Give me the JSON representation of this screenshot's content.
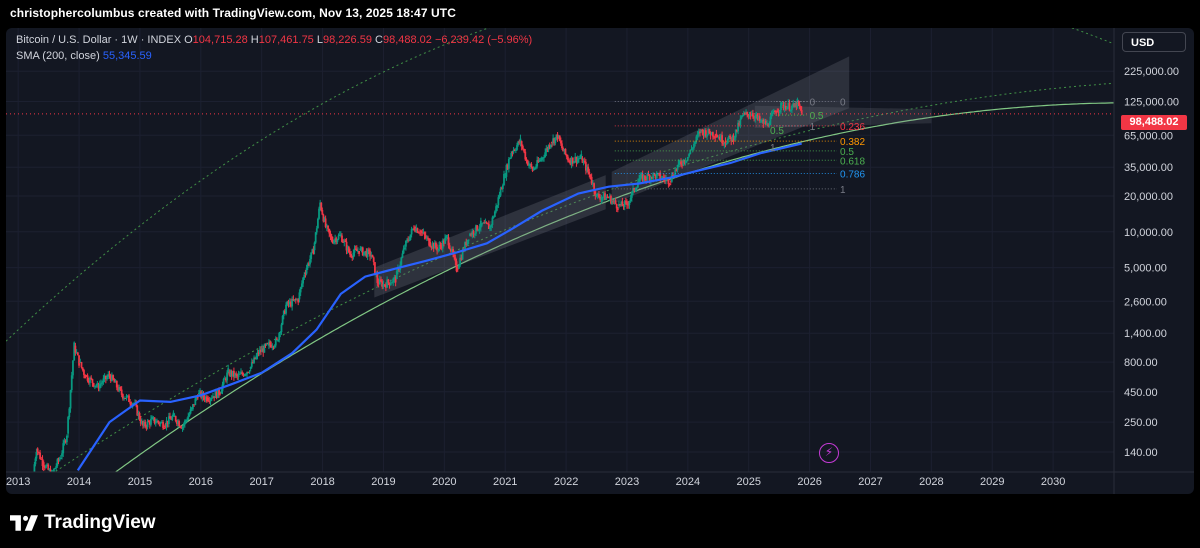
{
  "header": {
    "attribution": "christophercolumbus created with TradingView.com, Nov 13, 2025 18:47 UTC"
  },
  "legend": {
    "title": "Bitcoin / U.S. Dollar · 1W · INDEX",
    "open_label": "O",
    "open": "104,715.28",
    "high_label": "H",
    "high": "107,461.75",
    "low_label": "L",
    "low": "98,226.59",
    "close_label": "C",
    "close": "98,488.02",
    "change": "−6,239.42 (−5.96%)",
    "sma_label": "SMA (200, close)",
    "sma_value": "55,345.59"
  },
  "currency_button": "USD",
  "last_price_badge": "98,488.02",
  "brand": "TradingView",
  "colors": {
    "background": "#131722",
    "up": "#089981",
    "down": "#f23645",
    "sma": "#2962ff",
    "outer_curve": "#4caf50",
    "fib_channel": "#787b86",
    "accent_purple": "#c53ad6"
  },
  "chart_data": {
    "type": "candlestick",
    "y_scale": "log",
    "y_ticks": [
      "225,000.00",
      "125,000.00",
      "65,000.00",
      "35,000.00",
      "20,000.00",
      "10,000.00",
      "5,000.00",
      "2,600.00",
      "1,400.00",
      "800.00",
      "450.00",
      "250.00",
      "140.00"
    ],
    "y_tick_values": [
      225000,
      125000,
      65000,
      35000,
      20000,
      10000,
      5000,
      2600,
      1400,
      800,
      450,
      250,
      140
    ],
    "x_ticks": [
      "2013",
      "2014",
      "2015",
      "2016",
      "2017",
      "2018",
      "2019",
      "2020",
      "2021",
      "2022",
      "2023",
      "2024",
      "2025",
      "2026",
      "2027",
      "2028",
      "2029",
      "2030"
    ],
    "x_tick_values": [
      2013,
      2014,
      2015,
      2016,
      2017,
      2018,
      2019,
      2020,
      2021,
      2022,
      2023,
      2024,
      2025,
      2026,
      2027,
      2028,
      2029,
      2030
    ],
    "x_range": [
      2012.8,
      2031.0
    ],
    "y_range": [
      95,
      520000
    ],
    "price_series": [
      [
        2013.25,
        95
      ],
      [
        2013.3,
        150
      ],
      [
        2013.4,
        115
      ],
      [
        2013.55,
        90
      ],
      [
        2013.7,
        130
      ],
      [
        2013.8,
        200
      ],
      [
        2013.92,
        1100
      ],
      [
        2014.0,
        800
      ],
      [
        2014.1,
        620
      ],
      [
        2014.3,
        500
      ],
      [
        2014.5,
        620
      ],
      [
        2014.7,
        430
      ],
      [
        2014.9,
        360
      ],
      [
        2015.05,
        230
      ],
      [
        2015.2,
        260
      ],
      [
        2015.4,
        240
      ],
      [
        2015.55,
        280
      ],
      [
        2015.7,
        230
      ],
      [
        2015.85,
        320
      ],
      [
        2015.95,
        430
      ],
      [
        2016.1,
        400
      ],
      [
        2016.3,
        440
      ],
      [
        2016.45,
        660
      ],
      [
        2016.6,
        600
      ],
      [
        2016.8,
        700
      ],
      [
        2016.95,
        960
      ],
      [
        2017.1,
        1100
      ],
      [
        2017.25,
        1200
      ],
      [
        2017.4,
        2400
      ],
      [
        2017.6,
        2700
      ],
      [
        2017.7,
        4500
      ],
      [
        2017.85,
        7000
      ],
      [
        2017.96,
        17500
      ],
      [
        2018.05,
        11000
      ],
      [
        2018.15,
        8500
      ],
      [
        2018.3,
        9300
      ],
      [
        2018.45,
        6500
      ],
      [
        2018.6,
        7000
      ],
      [
        2018.8,
        6400
      ],
      [
        2018.9,
        3800
      ],
      [
        2019.0,
        3600
      ],
      [
        2019.2,
        4000
      ],
      [
        2019.35,
        7500
      ],
      [
        2019.5,
        11000
      ],
      [
        2019.6,
        10200
      ],
      [
        2019.75,
        8200
      ],
      [
        2019.9,
        7200
      ],
      [
        2020.05,
        9000
      ],
      [
        2020.2,
        4900
      ],
      [
        2020.4,
        9300
      ],
      [
        2020.6,
        11500
      ],
      [
        2020.75,
        11000
      ],
      [
        2020.85,
        16000
      ],
      [
        2020.98,
        29000
      ],
      [
        2021.1,
        47000
      ],
      [
        2021.25,
        58000
      ],
      [
        2021.35,
        40000
      ],
      [
        2021.45,
        33000
      ],
      [
        2021.6,
        42000
      ],
      [
        2021.75,
        57000
      ],
      [
        2021.86,
        64000
      ],
      [
        2021.95,
        48000
      ],
      [
        2022.05,
        40000
      ],
      [
        2022.25,
        42000
      ],
      [
        2022.4,
        29000
      ],
      [
        2022.5,
        20000
      ],
      [
        2022.7,
        19500
      ],
      [
        2022.85,
        16500
      ],
      [
        2023.0,
        17000
      ],
      [
        2023.2,
        28000
      ],
      [
        2023.45,
        30000
      ],
      [
        2023.7,
        27000
      ],
      [
        2023.85,
        37000
      ],
      [
        2024.0,
        43000
      ],
      [
        2024.2,
        70000
      ],
      [
        2024.45,
        67000
      ],
      [
        2024.6,
        58000
      ],
      [
        2024.75,
        62000
      ],
      [
        2024.9,
        95000
      ],
      [
        2025.05,
        100000
      ],
      [
        2025.2,
        84000
      ],
      [
        2025.3,
        80000
      ],
      [
        2025.45,
        105000
      ],
      [
        2025.55,
        117000
      ],
      [
        2025.75,
        112000
      ],
      [
        2025.8,
        122000
      ],
      [
        2025.87,
        98488
      ]
    ],
    "sma_200": [
      [
        2013.98,
        98
      ],
      [
        2014.5,
        250
      ],
      [
        2015.0,
        380
      ],
      [
        2015.5,
        370
      ],
      [
        2016.0,
        420
      ],
      [
        2016.5,
        520
      ],
      [
        2017.0,
        650
      ],
      [
        2017.5,
        950
      ],
      [
        2017.9,
        1500
      ],
      [
        2018.3,
        3000
      ],
      [
        2018.7,
        4200
      ],
      [
        2019.2,
        4900
      ],
      [
        2019.7,
        5700
      ],
      [
        2020.2,
        6700
      ],
      [
        2020.7,
        8000
      ],
      [
        2021.1,
        10500
      ],
      [
        2021.6,
        15000
      ],
      [
        2022.2,
        21000
      ],
      [
        2022.7,
        24000
      ],
      [
        2023.2,
        25500
      ],
      [
        2023.7,
        28500
      ],
      [
        2024.2,
        33000
      ],
      [
        2024.7,
        38000
      ],
      [
        2025.2,
        46000
      ],
      [
        2025.87,
        55345.59
      ]
    ],
    "fib_levels_main": [
      "0",
      "0.236",
      "0.382",
      "0.5",
      "0.618",
      "0.786",
      "1"
    ],
    "fib_levels_small": [
      "0",
      "0.5",
      "1"
    ],
    "fib_levels_inner": [
      "0.5",
      "1"
    ]
  }
}
